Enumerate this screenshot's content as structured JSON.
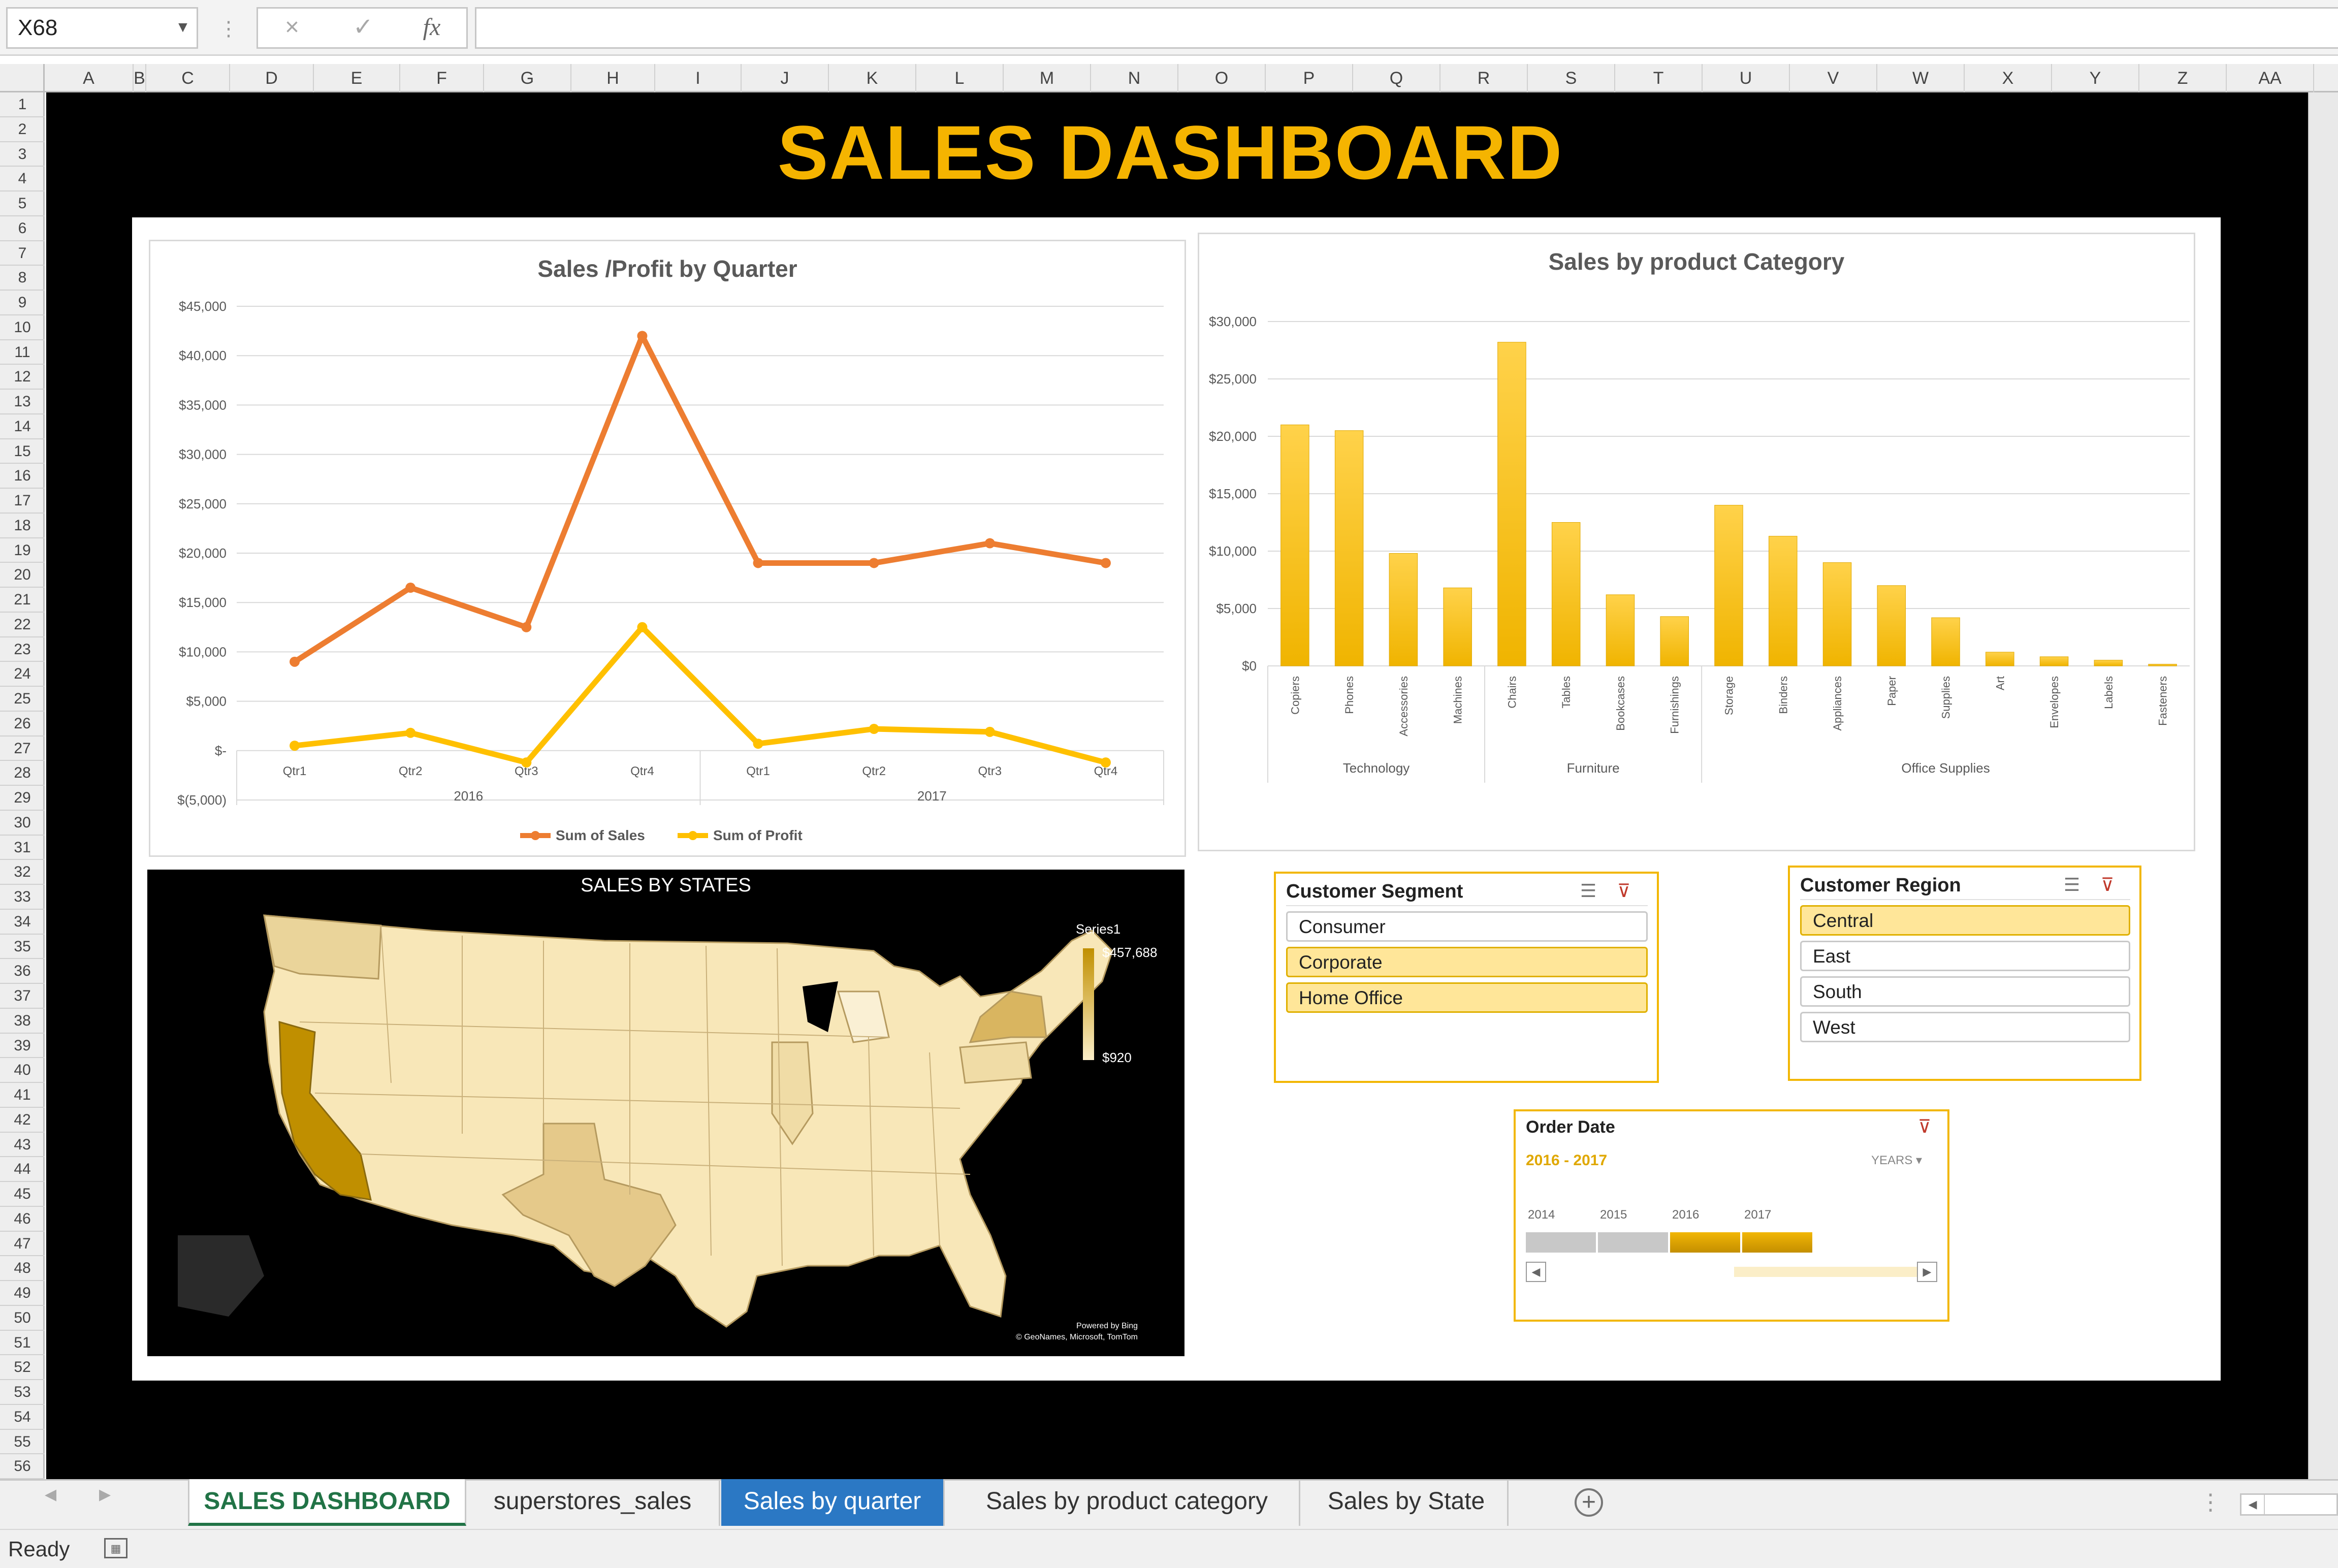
{
  "formula_bar": {
    "name_box": "X68",
    "cancel_icon": "×",
    "enter_icon": "✓",
    "fx_icon": "fx",
    "formula": ""
  },
  "columns": [
    "A",
    "B",
    "C",
    "D",
    "E",
    "F",
    "G",
    "H",
    "I",
    "J",
    "K",
    "L",
    "M",
    "N",
    "O",
    "P",
    "Q",
    "R",
    "S",
    "T",
    "U",
    "V",
    "W",
    "X",
    "Y",
    "Z",
    "AA"
  ],
  "rows": [
    "1",
    "2",
    "3",
    "4",
    "5",
    "6",
    "7",
    "8",
    "9",
    "10",
    "11",
    "12",
    "13",
    "14",
    "15",
    "16",
    "17",
    "18",
    "19",
    "20",
    "21",
    "22",
    "23",
    "24",
    "25",
    "26",
    "27",
    "28",
    "29",
    "30",
    "31",
    "32",
    "33",
    "34",
    "35",
    "36",
    "37",
    "38",
    "39",
    "40",
    "41",
    "42",
    "43",
    "44",
    "45",
    "46",
    "47",
    "48",
    "49",
    "50",
    "51",
    "52",
    "53",
    "54",
    "55",
    "56"
  ],
  "dashboard": {
    "title": "SALES DASHBOARD",
    "accent_color": "#f5b400"
  },
  "chart_data": [
    {
      "type": "line",
      "title": "Sales /Profit by Quarter",
      "categories": [
        "Qtr1",
        "Qtr2",
        "Qtr3",
        "Qtr4",
        "Qtr1",
        "Qtr2",
        "Qtr3",
        "Qtr4"
      ],
      "groups": [
        {
          "label": "2016",
          "span": 4
        },
        {
          "label": "2017",
          "span": 4
        }
      ],
      "series": [
        {
          "name": "Sum of Sales",
          "color": "#ed7d31",
          "values": [
            9000,
            16500,
            12500,
            42000,
            19000,
            19000,
            21000,
            19000
          ]
        },
        {
          "name": "Sum of Profit",
          "color": "#ffc000",
          "values": [
            500,
            1800,
            -1200,
            12500,
            700,
            2200,
            1900,
            -1200
          ]
        }
      ],
      "ylim": [
        -5000,
        45000
      ],
      "yticks": [
        -5000,
        0,
        5000,
        10000,
        15000,
        20000,
        25000,
        30000,
        35000,
        40000,
        45000
      ],
      "ytick_labels": [
        "$(5,000)",
        "$-",
        "$5,000",
        "$10,000",
        "$15,000",
        "$20,000",
        "$25,000",
        "$30,000",
        "$35,000",
        "$40,000",
        "$45,000"
      ],
      "grid": true,
      "legend": "bottom"
    },
    {
      "type": "bar",
      "title": "Sales by product Category",
      "categories": [
        "Copiers",
        "Phones",
        "Accessories",
        "Machines",
        "Chairs",
        "Tables",
        "Bookcases",
        "Furnishings",
        "Storage",
        "Binders",
        "Appliances",
        "Paper",
        "Supplies",
        "Art",
        "Envelopes",
        "Labels",
        "Fasteners"
      ],
      "groups": [
        {
          "label": "Technology",
          "span": 4
        },
        {
          "label": "Furniture",
          "span": 4
        },
        {
          "label": "Office Supplies",
          "span": 9
        }
      ],
      "values": [
        21000,
        20500,
        9800,
        6800,
        28200,
        12500,
        6200,
        4300,
        14000,
        11300,
        9000,
        7000,
        4200,
        1200,
        800,
        500,
        150
      ],
      "ylim": [
        0,
        30000
      ],
      "yticks": [
        0,
        5000,
        10000,
        15000,
        20000,
        25000,
        30000
      ],
      "ytick_labels": [
        "$0",
        "$5,000",
        "$10,000",
        "$15,000",
        "$20,000",
        "$25,000",
        "$30,000"
      ],
      "color": "#ffc000",
      "grid": true
    }
  ],
  "map": {
    "title": "SALES BY STATES",
    "legend_series": "Series1",
    "legend_max": "$457,688",
    "legend_min": "$920",
    "credit_line1": "Powered by Bing",
    "credit_line2": "© GeoNames, Microsoft, TomTom"
  },
  "slicers": {
    "segment": {
      "title": "Customer Segment",
      "items": [
        {
          "label": "Consumer",
          "selected": false
        },
        {
          "label": "Corporate",
          "selected": true
        },
        {
          "label": "Home Office",
          "selected": true
        }
      ]
    },
    "region": {
      "title": "Customer Region",
      "items": [
        {
          "label": "Central",
          "selected": true
        },
        {
          "label": "East",
          "selected": false
        },
        {
          "label": "South",
          "selected": false
        },
        {
          "label": "West",
          "selected": false
        }
      ]
    }
  },
  "timeline": {
    "title": "Order Date",
    "range_label": "2016 - 2017",
    "level": "YEARS",
    "years": [
      "2014",
      "2015",
      "2016",
      "2017"
    ],
    "selected": [
      false,
      false,
      true,
      true
    ]
  },
  "sheet_tabs": [
    {
      "label": "SALES DASHBOARD"
    },
    {
      "label": "superstores_sales"
    },
    {
      "label": "Sales by quarter"
    },
    {
      "label": "Sales by product category"
    },
    {
      "label": "Sales by State"
    }
  ],
  "status": {
    "text": "Ready"
  }
}
